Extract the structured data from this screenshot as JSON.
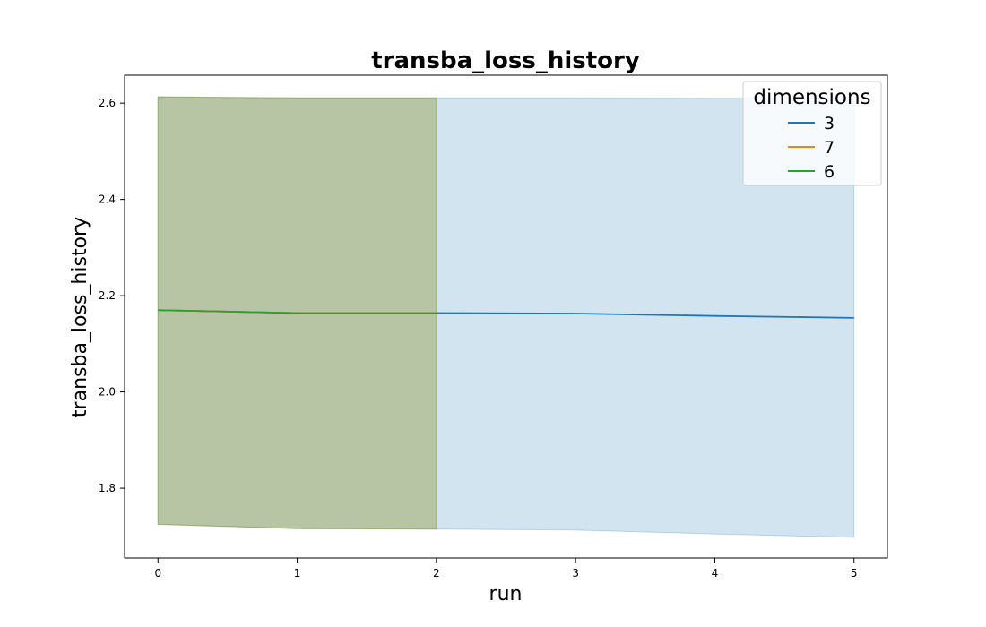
{
  "chart_data": {
    "type": "line",
    "title": "transba_loss_history",
    "xlabel": "run",
    "ylabel": "transba_loss_history",
    "xlim": [
      -0.24,
      5.24
    ],
    "ylim": [
      1.655,
      2.658
    ],
    "xticks": [
      0,
      1,
      2,
      3,
      4,
      5
    ],
    "yticks": [
      1.8,
      2.0,
      2.2,
      2.4,
      2.6
    ],
    "ytick_labels": [
      "1.8",
      "2.0",
      "2.2",
      "2.4",
      "2.6"
    ],
    "grid": false,
    "legend": {
      "title": "dimensions",
      "placement": "top-right"
    },
    "series": [
      {
        "name": "3",
        "color": "#1f77b4",
        "x": [
          0,
          1,
          2,
          3,
          4,
          5
        ],
        "y": [
          2.17,
          2.164,
          2.164,
          2.163,
          2.158,
          2.154
        ],
        "band_upper": [
          2.613,
          2.611,
          2.611,
          2.611,
          2.61,
          2.61
        ],
        "band_lower": [
          1.725,
          1.716,
          1.715,
          1.713,
          1.705,
          1.698
        ]
      },
      {
        "name": "7",
        "color": "#ff7f0e",
        "x": [
          0,
          1,
          2
        ],
        "y": [
          2.17,
          2.164,
          2.164
        ],
        "band_upper": [
          2.613,
          2.611,
          2.611
        ],
        "band_lower": [
          1.725,
          1.716,
          1.715
        ]
      },
      {
        "name": "6",
        "color": "#2ca02c",
        "x": [
          0,
          1,
          2
        ],
        "y": [
          2.17,
          2.164,
          2.164
        ],
        "band_upper": [
          2.613,
          2.611,
          2.611
        ],
        "band_lower": [
          1.725,
          1.716,
          1.715
        ]
      }
    ]
  }
}
